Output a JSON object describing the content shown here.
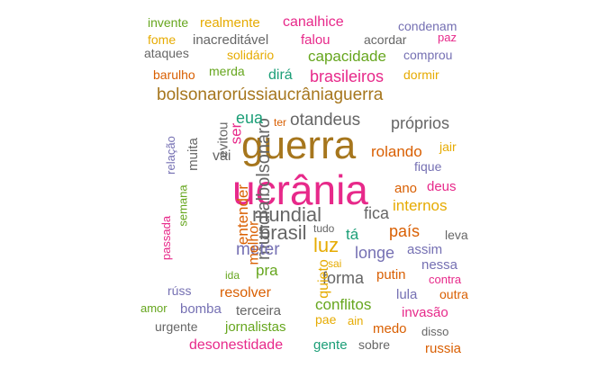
{
  "words": [
    {
      "text": "guerra",
      "color": "#a6761d"
    },
    {
      "text": "ucrânia",
      "color": "#e7298a"
    },
    {
      "text": "bolsonarorússiaucrâniaguerra",
      "color": "#a6761d"
    },
    {
      "text": "mundialbolsonaro",
      "color": "#666666"
    },
    {
      "text": "mundial",
      "color": "#666666"
    },
    {
      "text": "otandeus",
      "color": "#666666"
    },
    {
      "text": "brasil",
      "color": "#666666"
    },
    {
      "text": "luz",
      "color": "#e6ab02"
    },
    {
      "text": "meter",
      "color": "#7570b3"
    },
    {
      "text": "entender",
      "color": "#d95f02"
    },
    {
      "text": "ser",
      "color": "#e7298a"
    },
    {
      "text": "eua",
      "color": "#1b9e77"
    },
    {
      "text": "brasileiros",
      "color": "#e7298a"
    },
    {
      "text": "capacidade",
      "color": "#66a61e"
    },
    {
      "text": "rolando",
      "color": "#d95f02"
    },
    {
      "text": "próprios",
      "color": "#666666"
    },
    {
      "text": "fica",
      "color": "#666666"
    },
    {
      "text": "país",
      "color": "#d95f02"
    },
    {
      "text": "internos",
      "color": "#e6ab02"
    },
    {
      "text": "longe",
      "color": "#7570b3"
    },
    {
      "text": "forma",
      "color": "#666666"
    },
    {
      "text": "melhor",
      "color": "#d95f02"
    },
    {
      "text": "quieto",
      "color": "#e6ab02"
    },
    {
      "text": "vai",
      "color": "#666666"
    },
    {
      "text": "muita",
      "color": "#666666"
    },
    {
      "text": "evitou",
      "color": "#666666"
    },
    {
      "text": "tá",
      "color": "#1b9e77"
    },
    {
      "text": "pra",
      "color": "#66a61e"
    },
    {
      "text": "resolver",
      "color": "#d95f02"
    },
    {
      "text": "conflitos",
      "color": "#66a61e"
    },
    {
      "text": "inacreditável",
      "color": "#666666"
    },
    {
      "text": "canalhice",
      "color": "#e7298a"
    },
    {
      "text": "realmente",
      "color": "#e6ab02"
    },
    {
      "text": "invente",
      "color": "#66a61e"
    },
    {
      "text": "condenam",
      "color": "#7570b3"
    },
    {
      "text": "fome",
      "color": "#e6ab02"
    },
    {
      "text": "falou",
      "color": "#e7298a"
    },
    {
      "text": "acordar",
      "color": "#666666"
    },
    {
      "text": "paz",
      "color": "#e7298a"
    },
    {
      "text": "ataques",
      "color": "#666666"
    },
    {
      "text": "solidário",
      "color": "#e6ab02"
    },
    {
      "text": "comprou",
      "color": "#7570b3"
    },
    {
      "text": "barulho",
      "color": "#d95f02"
    },
    {
      "text": "merda",
      "color": "#66a61e"
    },
    {
      "text": "dirá",
      "color": "#1b9e77"
    },
    {
      "text": "dormir",
      "color": "#e6ab02"
    },
    {
      "text": "ter",
      "color": "#d95f02"
    },
    {
      "text": "jair",
      "color": "#e6ab02"
    },
    {
      "text": "fique",
      "color": "#7570b3"
    },
    {
      "text": "ano",
      "color": "#d95f02"
    },
    {
      "text": "deus",
      "color": "#e7298a"
    },
    {
      "text": "relação",
      "color": "#7570b3"
    },
    {
      "text": "semana",
      "color": "#66a61e"
    },
    {
      "text": "passada",
      "color": "#e7298a"
    },
    {
      "text": "tudo",
      "color": "#666666"
    },
    {
      "text": "leva",
      "color": "#666666"
    },
    {
      "text": "assim",
      "color": "#7570b3"
    },
    {
      "text": "nessa",
      "color": "#7570b3"
    },
    {
      "text": "sai",
      "color": "#e6ab02"
    },
    {
      "text": "putin",
      "color": "#d95f02"
    },
    {
      "text": "ida",
      "color": "#66a61e"
    },
    {
      "text": "contra",
      "color": "#e7298a"
    },
    {
      "text": "rúss",
      "color": "#7570b3"
    },
    {
      "text": "lula",
      "color": "#7570b3"
    },
    {
      "text": "outra",
      "color": "#d95f02"
    },
    {
      "text": "amor",
      "color": "#66a61e"
    },
    {
      "text": "bomba",
      "color": "#7570b3"
    },
    {
      "text": "terceira",
      "color": "#666666"
    },
    {
      "text": "pae",
      "color": "#e6ab02"
    },
    {
      "text": "invasão",
      "color": "#e7298a"
    },
    {
      "text": "urgente",
      "color": "#666666"
    },
    {
      "text": "jornalistas",
      "color": "#66a61e"
    },
    {
      "text": "ain",
      "color": "#e6ab02"
    },
    {
      "text": "medo",
      "color": "#d95f02"
    },
    {
      "text": "disso",
      "color": "#666666"
    },
    {
      "text": "desonestidade",
      "color": "#e7298a"
    },
    {
      "text": "gente",
      "color": "#1b9e77"
    },
    {
      "text": "sobre",
      "color": "#666666"
    },
    {
      "text": "russia",
      "color": "#d95f02"
    }
  ]
}
